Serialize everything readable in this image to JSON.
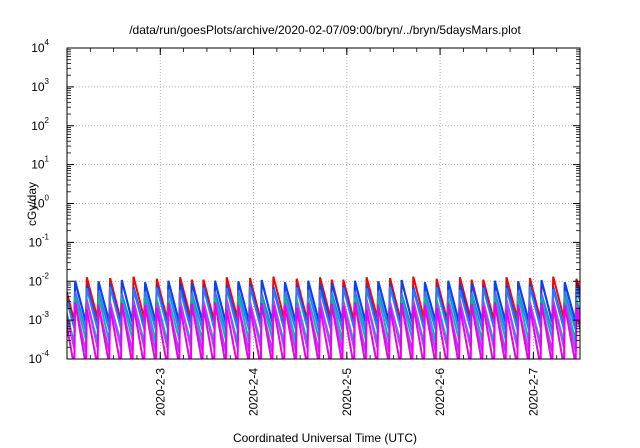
{
  "chart_data": {
    "type": "line",
    "title": "/data/run/goesPlots/archive/2020-02-07/09:00/bryn/../bryn/5daysMars.plot",
    "xlabel": "Coordinated Universal Time (UTC)",
    "ylabel": "cGy/day",
    "y_scale": "log",
    "ylim": [
      0.0001,
      10000
    ],
    "xlim": [
      "2020-02-02T00:00",
      "2020-02-07T12:00"
    ],
    "grid": true,
    "y_ticks": [
      {
        "base": "10",
        "exp": "-4",
        "value": 0.0001
      },
      {
        "base": "10",
        "exp": "-3",
        "value": 0.001
      },
      {
        "base": "10",
        "exp": "-2",
        "value": 0.01
      },
      {
        "base": "10",
        "exp": "-1",
        "value": 0.1
      },
      {
        "base": "10",
        "exp": "0",
        "value": 1
      },
      {
        "base": "10",
        "exp": "1",
        "value": 10
      },
      {
        "base": "10",
        "exp": "2",
        "value": 100
      },
      {
        "base": "10",
        "exp": "3",
        "value": 1000
      },
      {
        "base": "10",
        "exp": "4",
        "value": 10000
      }
    ],
    "x_ticks": [
      {
        "label": "2020-2-3",
        "value": "2020-02-03T00:00"
      },
      {
        "label": "2020-2-4",
        "value": "2020-02-04T00:00"
      },
      {
        "label": "2020-2-5",
        "value": "2020-02-05T00:00"
      },
      {
        "label": "2020-2-6",
        "value": "2020-02-06T00:00"
      },
      {
        "label": "2020-2-7",
        "value": "2020-02-07T00:00"
      }
    ],
    "series_style": {
      "period_hours": 3.0,
      "peak_jitter": [
        1.0,
        0.85,
        1.15,
        0.9,
        1.1,
        0.95,
        1.2,
        0.8,
        1.05,
        0.9,
        1.15,
        1.0
      ]
    },
    "series": [
      {
        "color": "#ff0000",
        "peak": 0.011,
        "trough": 0.0012
      },
      {
        "color": "#0044ff",
        "peak": 0.009,
        "trough": 0.001
      },
      {
        "color": "#3377ff",
        "peak": 0.006,
        "trough": 0.0007
      },
      {
        "color": "#00bbaa",
        "peak": 0.0035,
        "trough": 0.00035
      },
      {
        "color": "#aa44ff",
        "peak": 0.0028,
        "trough": 0.00022
      },
      {
        "color": "#ee00ee",
        "peak": 0.0024,
        "trough": 8e-05
      }
    ]
  }
}
